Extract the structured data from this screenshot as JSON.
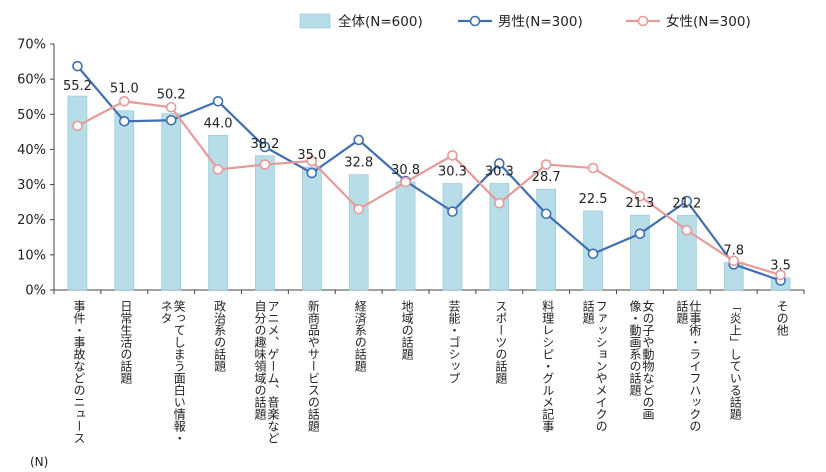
{
  "chart_data": {
    "type": "bar+line",
    "categories": [
      "事件・事故などのニュース",
      "日常生活の話題",
      "笑ってしまう面白い情報・ネタ",
      "政治系の話題",
      "アニメ、ゲーム、音楽など自分の趣味領域の話題",
      "新商品やサービスの話題",
      "経済系の話題",
      "地域の話題",
      "芸能・ゴシップ",
      "スポーツの話題",
      "料理レシピ・グルメ記事",
      "ファッションやメイクの話題",
      "女の子や動物などの画像・動画系の話題",
      "仕事術・ライフハックの話題",
      "「炎上」している話題",
      "その他"
    ],
    "category_lines": [
      [
        "事件・事故などのニュース"
      ],
      [
        "日常生活の話題"
      ],
      [
        "笑ってしまう面白い情報・",
        "ネタ"
      ],
      [
        "政治系の話題"
      ],
      [
        "アニメ、ゲーム、音楽など",
        "自分の趣味領域の話題"
      ],
      [
        "新商品やサービスの話題"
      ],
      [
        "経済系の話題"
      ],
      [
        "地域の話題"
      ],
      [
        "芸能・ゴシップ"
      ],
      [
        "スポーツの話題"
      ],
      [
        "料理レシピ・グルメ記事"
      ],
      [
        "ファッションやメイクの",
        "話題"
      ],
      [
        "女の子や動物などの画",
        "像・動画系の話題"
      ],
      [
        "仕事術・ライフハックの",
        "話題"
      ],
      [
        "「炎上」している話題"
      ],
      [
        "その他"
      ]
    ],
    "series": [
      {
        "name": "全体(N=600)",
        "kind": "bar",
        "color": "#b7dde8",
        "values": [
          55.2,
          51.0,
          50.2,
          44.0,
          38.2,
          35.0,
          32.8,
          30.8,
          30.3,
          30.3,
          28.7,
          22.5,
          21.3,
          21.2,
          7.8,
          3.5
        ]
      },
      {
        "name": "男性(N=300)",
        "kind": "line",
        "color": "#3f6fb1",
        "values": [
          63.7,
          48.0,
          48.3,
          53.7,
          40.7,
          33.3,
          42.7,
          31.0,
          22.3,
          36.0,
          21.7,
          10.3,
          16.0,
          25.3,
          7.3,
          2.7
        ]
      },
      {
        "name": "女性(N=300)",
        "kind": "line",
        "color": "#e79a9a",
        "values": [
          46.7,
          53.7,
          52.0,
          34.3,
          35.7,
          36.7,
          23.0,
          30.7,
          38.3,
          24.7,
          35.7,
          34.7,
          26.7,
          17.0,
          8.3,
          4.3
        ]
      }
    ],
    "data_labels": [
      "55.2",
      "51.0",
      "50.2",
      "44.0",
      "38.2",
      "35.0",
      "32.8",
      "30.8",
      "30.3",
      "30.3",
      "28.7",
      "22.5",
      "21.3",
      "21.2",
      "7.8",
      "3.5"
    ],
    "yticks": [
      "0%",
      "10%",
      "20%",
      "30%",
      "40%",
      "50%",
      "60%",
      "70%"
    ],
    "ylim": [
      0,
      70
    ],
    "legend_position": "top-right",
    "n_label": "(N)"
  }
}
